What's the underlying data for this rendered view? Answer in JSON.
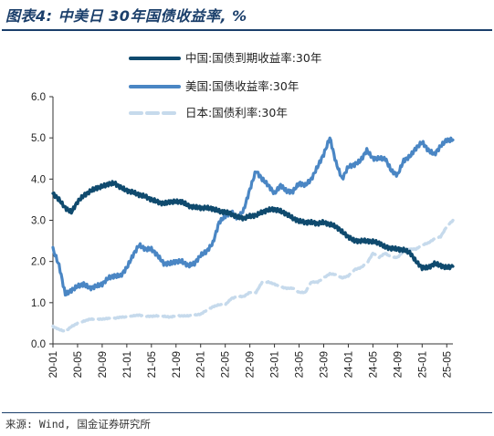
{
  "header": {
    "title": "图表4: 中美日 30年国债收益率, %"
  },
  "footer": {
    "source": "来源: Wind, 国金证券研究所"
  },
  "colors": {
    "china": "#0f4a6e",
    "us": "#4a86c4",
    "japan": "#c6daec",
    "rule": "#1b3f6b"
  },
  "chart_data": {
    "type": "line",
    "title": "中美日 30年国债收益率, %",
    "xlabel": "",
    "ylabel": "",
    "ylim": [
      0,
      6
    ],
    "yticks": [
      "0.0",
      "1.0",
      "2.0",
      "3.0",
      "4.0",
      "5.0",
      "6.0"
    ],
    "xticks": [
      "20-01",
      "20-05",
      "20-09",
      "21-01",
      "21-05",
      "21-09",
      "22-01",
      "22-05",
      "22-09",
      "23-01",
      "23-05",
      "23-09",
      "24-01",
      "24-05",
      "24-09",
      "25-01",
      "25-05"
    ],
    "grid": false,
    "legend_position": "top",
    "series": [
      {
        "name": "中国:国债到期收益率:30年",
        "style": "solid-thick",
        "color": "#0f4a6e",
        "x": [
          "20-01",
          "20-02",
          "20-03",
          "20-04",
          "20-05",
          "20-06",
          "20-07",
          "20-08",
          "20-09",
          "20-10",
          "20-11",
          "20-12",
          "21-01",
          "21-02",
          "21-03",
          "21-04",
          "21-05",
          "21-06",
          "21-07",
          "21-08",
          "21-09",
          "21-10",
          "21-11",
          "21-12",
          "22-01",
          "22-02",
          "22-03",
          "22-04",
          "22-05",
          "22-06",
          "22-07",
          "22-08",
          "22-09",
          "22-10",
          "22-11",
          "22-12",
          "23-01",
          "23-02",
          "23-03",
          "23-04",
          "23-05",
          "23-06",
          "23-07",
          "23-08",
          "23-09",
          "23-10",
          "23-11",
          "23-12",
          "24-01",
          "24-02",
          "24-03",
          "24-04",
          "24-05",
          "24-06",
          "24-07",
          "24-08",
          "24-09",
          "24-10",
          "24-11",
          "24-12",
          "25-01",
          "25-02",
          "25-03",
          "25-04",
          "25-05",
          "25-06"
        ],
        "values": [
          3.65,
          3.5,
          3.3,
          3.2,
          3.45,
          3.6,
          3.7,
          3.78,
          3.82,
          3.88,
          3.9,
          3.8,
          3.72,
          3.68,
          3.62,
          3.58,
          3.5,
          3.45,
          3.4,
          3.45,
          3.45,
          3.45,
          3.35,
          3.32,
          3.3,
          3.3,
          3.28,
          3.22,
          3.2,
          3.15,
          3.08,
          3.05,
          3.1,
          3.12,
          3.2,
          3.25,
          3.27,
          3.22,
          3.15,
          3.05,
          2.98,
          2.95,
          2.95,
          2.92,
          2.95,
          2.9,
          2.85,
          2.72,
          2.6,
          2.5,
          2.5,
          2.5,
          2.48,
          2.45,
          2.35,
          2.32,
          2.3,
          2.28,
          2.22,
          2.0,
          1.85,
          1.85,
          1.95,
          1.9,
          1.85,
          1.88
        ]
      },
      {
        "name": "美国:国债收益率:30年",
        "style": "solid-thick",
        "color": "#4a86c4",
        "x": [
          "20-01",
          "20-02",
          "20-03",
          "20-04",
          "20-05",
          "20-06",
          "20-07",
          "20-08",
          "20-09",
          "20-10",
          "20-11",
          "20-12",
          "21-01",
          "21-02",
          "21-03",
          "21-04",
          "21-05",
          "21-06",
          "21-07",
          "21-08",
          "21-09",
          "21-10",
          "21-11",
          "21-12",
          "22-01",
          "22-02",
          "22-03",
          "22-04",
          "22-05",
          "22-06",
          "22-07",
          "22-08",
          "22-09",
          "22-10",
          "22-11",
          "22-12",
          "23-01",
          "23-02",
          "23-03",
          "23-04",
          "23-05",
          "23-06",
          "23-07",
          "23-08",
          "23-09",
          "23-10",
          "23-11",
          "23-12",
          "24-01",
          "24-02",
          "24-03",
          "24-04",
          "24-05",
          "24-06",
          "24-07",
          "24-08",
          "24-09",
          "24-10",
          "24-11",
          "24-12",
          "25-01",
          "25-02",
          "25-03",
          "25-04",
          "25-05",
          "25-06"
        ],
        "values": [
          2.3,
          1.9,
          1.2,
          1.3,
          1.4,
          1.45,
          1.35,
          1.4,
          1.45,
          1.6,
          1.65,
          1.65,
          1.85,
          2.15,
          2.4,
          2.3,
          2.3,
          2.15,
          1.95,
          1.95,
          2.0,
          2.0,
          1.9,
          1.95,
          2.15,
          2.25,
          2.45,
          2.95,
          3.1,
          3.2,
          3.05,
          3.25,
          3.75,
          4.2,
          4.0,
          3.85,
          3.65,
          3.85,
          3.7,
          3.7,
          3.9,
          3.85,
          4.0,
          4.3,
          4.6,
          5.0,
          4.4,
          4.0,
          4.3,
          4.35,
          4.45,
          4.7,
          4.5,
          4.5,
          4.5,
          4.2,
          4.1,
          4.45,
          4.55,
          4.75,
          4.9,
          4.7,
          4.6,
          4.8,
          4.95,
          4.95
        ]
      },
      {
        "name": "日本:国债利率:30年",
        "style": "dashed-thick",
        "color": "#c6daec",
        "x": [
          "20-01",
          "20-02",
          "20-03",
          "20-04",
          "20-05",
          "20-06",
          "20-07",
          "20-08",
          "20-09",
          "20-10",
          "20-11",
          "20-12",
          "21-01",
          "21-02",
          "21-03",
          "21-04",
          "21-05",
          "21-06",
          "21-07",
          "21-08",
          "21-09",
          "21-10",
          "21-11",
          "21-12",
          "22-01",
          "22-02",
          "22-03",
          "22-04",
          "22-05",
          "22-06",
          "22-07",
          "22-08",
          "22-09",
          "22-10",
          "22-11",
          "22-12",
          "23-01",
          "23-02",
          "23-03",
          "23-04",
          "23-05",
          "23-06",
          "23-07",
          "23-08",
          "23-09",
          "23-10",
          "23-11",
          "23-12",
          "24-01",
          "24-02",
          "24-03",
          "24-04",
          "24-05",
          "24-06",
          "24-07",
          "24-08",
          "24-09",
          "24-10",
          "24-11",
          "24-12",
          "25-01",
          "25-02",
          "25-03",
          "25-04",
          "25-05",
          "25-06"
        ],
        "values": [
          0.42,
          0.35,
          0.3,
          0.42,
          0.5,
          0.55,
          0.6,
          0.6,
          0.6,
          0.62,
          0.62,
          0.65,
          0.65,
          0.68,
          0.7,
          0.67,
          0.67,
          0.68,
          0.67,
          0.65,
          0.68,
          0.68,
          0.68,
          0.7,
          0.72,
          0.82,
          0.9,
          0.95,
          0.95,
          1.1,
          1.15,
          1.15,
          1.25,
          1.25,
          1.5,
          1.5,
          1.45,
          1.38,
          1.35,
          1.35,
          1.25,
          1.25,
          1.5,
          1.5,
          1.6,
          1.7,
          1.68,
          1.6,
          1.65,
          1.8,
          1.85,
          1.95,
          2.2,
          2.1,
          2.2,
          2.1,
          2.1,
          2.25,
          2.3,
          2.3,
          2.4,
          2.45,
          2.55,
          2.6,
          2.85,
          3.0
        ]
      }
    ]
  }
}
